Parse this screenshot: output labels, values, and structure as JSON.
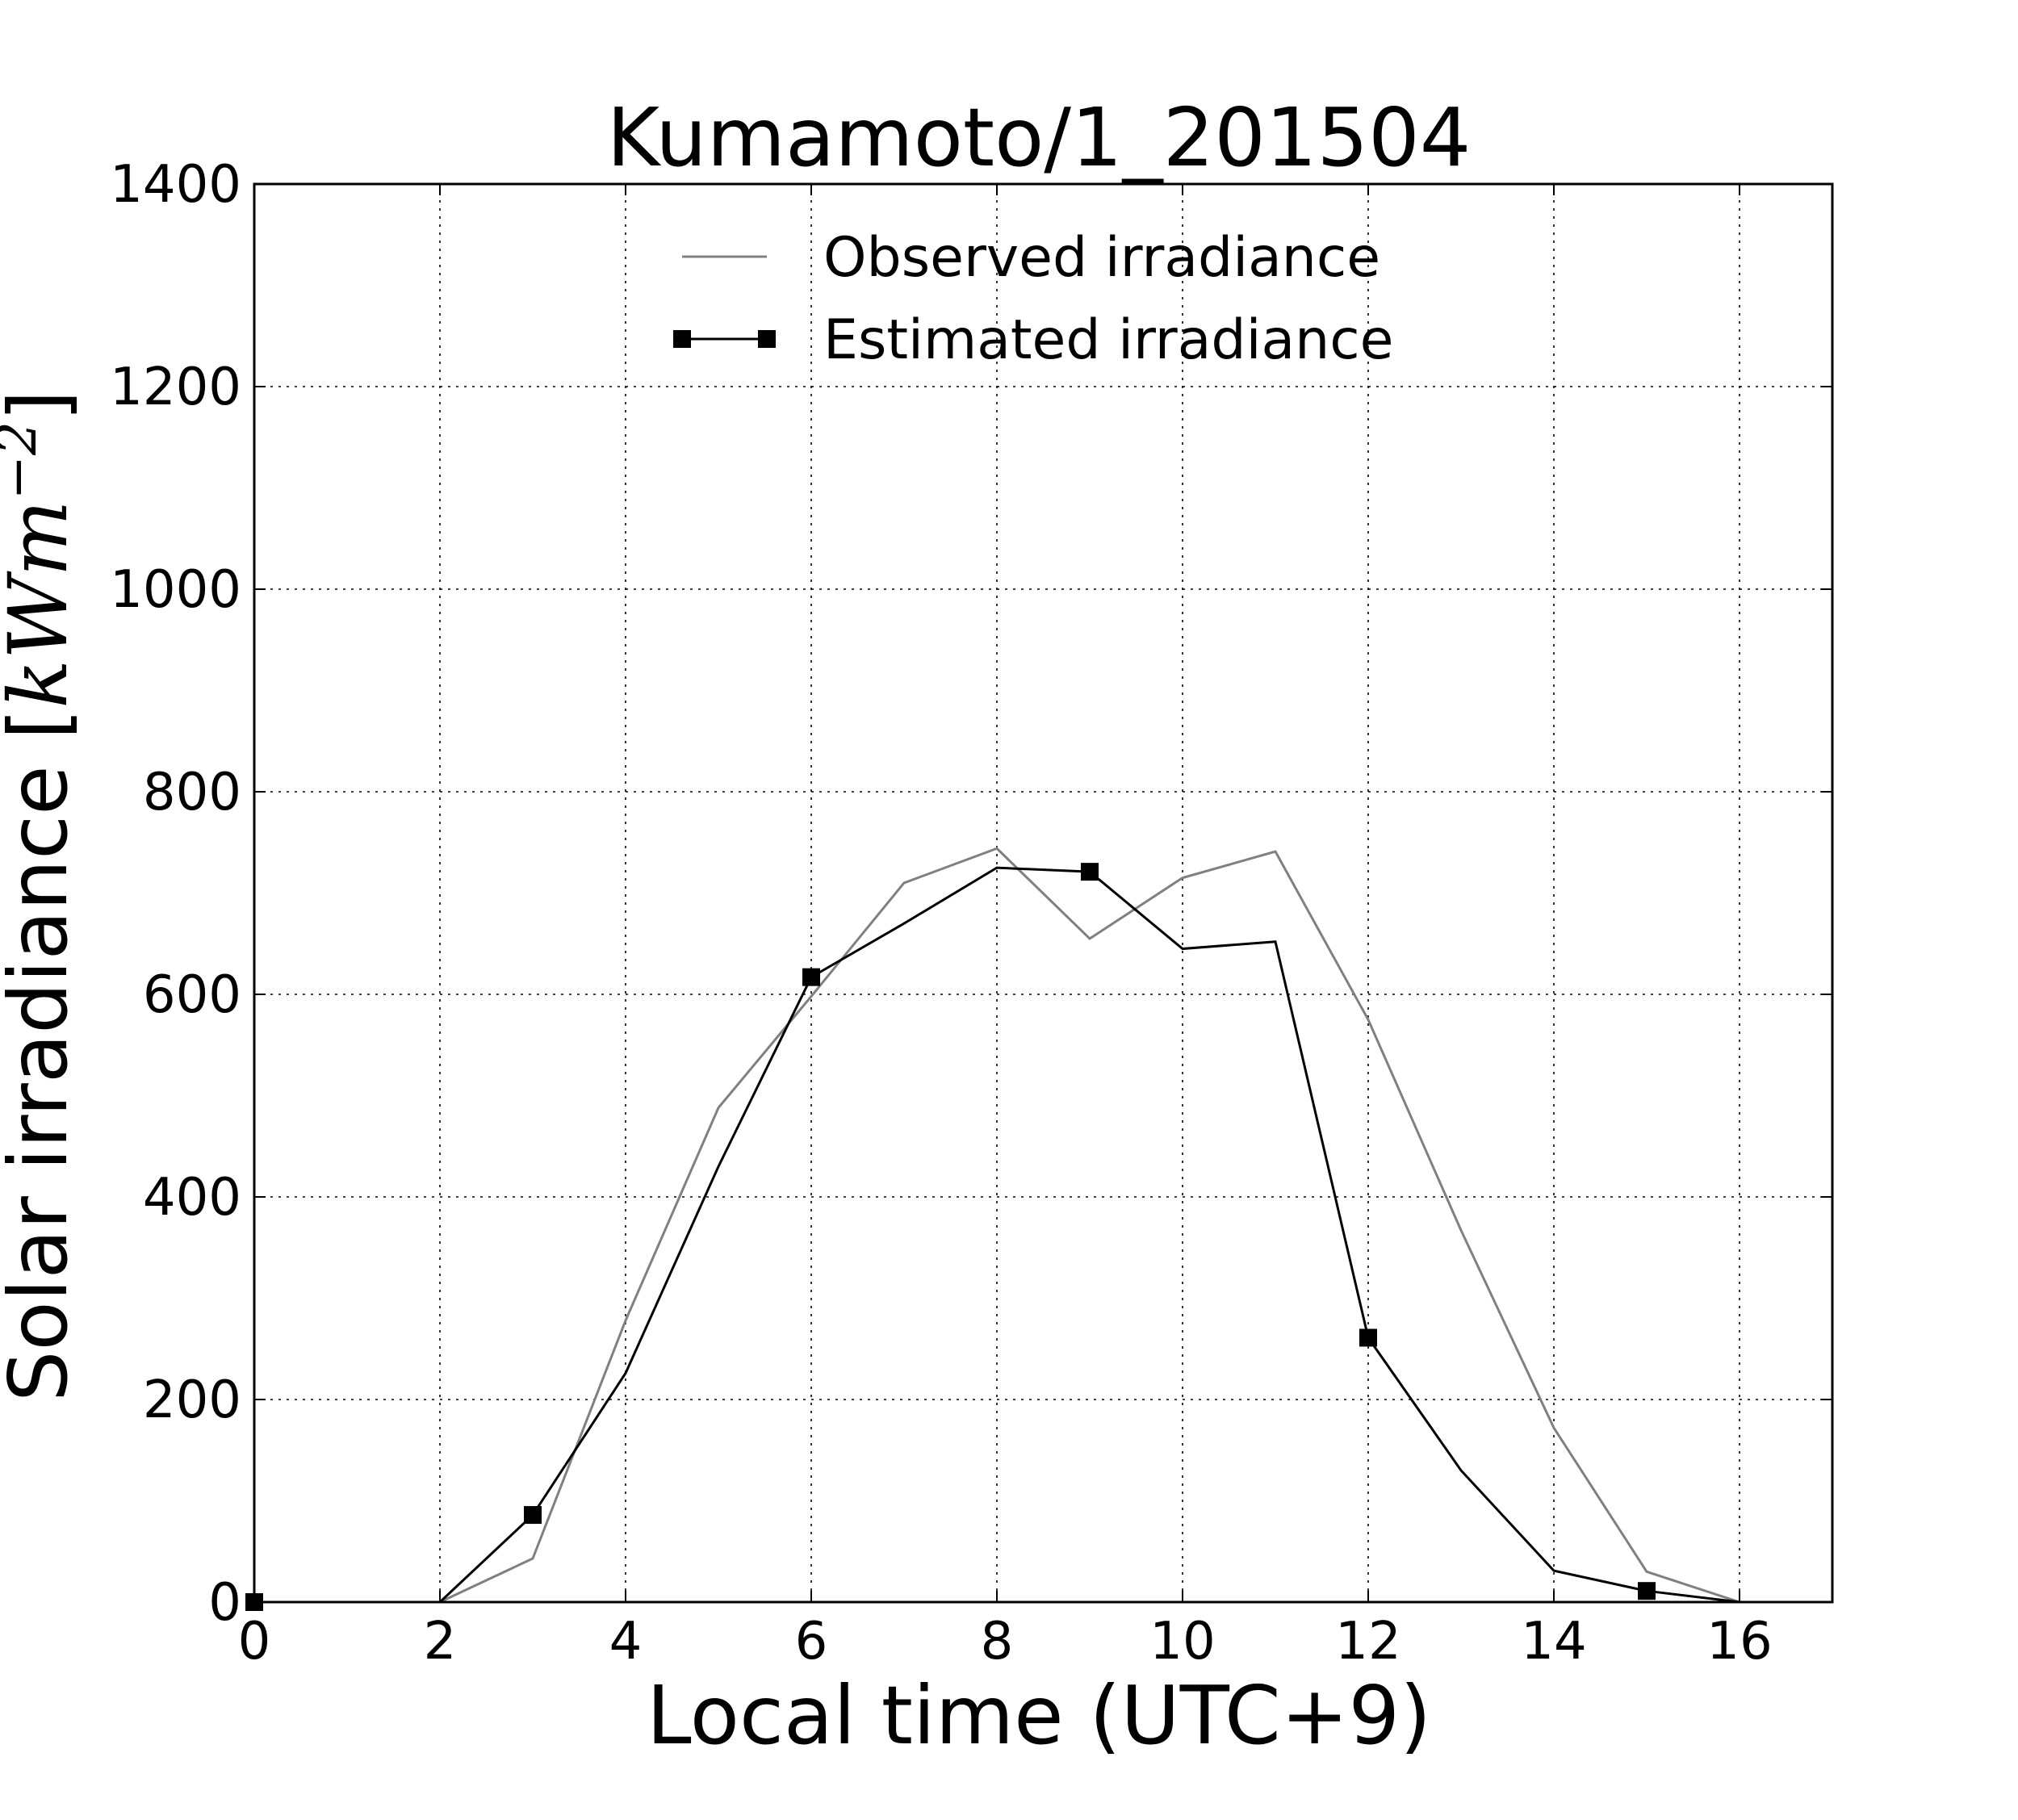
{
  "chart_data": {
    "type": "line",
    "title": "Kumamoto/1_201504",
    "xlabel": "Local time (UTC+9)",
    "ylabel": {
      "text": "Solar irradiance ",
      "unit_open": "[",
      "unit_kW": "kW",
      "unit_m": "m",
      "unit_exp": "−2",
      "unit_close": "]"
    },
    "xlim": [
      0,
      17
    ],
    "ylim": [
      0,
      1400
    ],
    "x_ticks": [
      0,
      2,
      4,
      6,
      8,
      10,
      12,
      14,
      16
    ],
    "y_ticks": [
      0,
      200,
      400,
      600,
      800,
      1000,
      1200,
      1400
    ],
    "grid": true,
    "legend_position": "upper center",
    "series": [
      {
        "name": "Observed irradiance",
        "color": "#808080",
        "marker": "none",
        "x": [
          0,
          1,
          2,
          3,
          4,
          5,
          6,
          7,
          8,
          9,
          10,
          11,
          12,
          13,
          14,
          15,
          16,
          17
        ],
        "y": [
          0,
          0,
          0,
          43,
          278,
          488,
          598,
          710,
          744,
          655,
          715,
          741,
          575,
          367,
          172,
          30,
          0,
          0
        ]
      },
      {
        "name": "Estimated irradiance",
        "color": "#000000",
        "marker": "square",
        "x": [
          0,
          1,
          2,
          3,
          4,
          5,
          6,
          7,
          8,
          9,
          10,
          11,
          12,
          13,
          14,
          15,
          16,
          17
        ],
        "y": [
          0,
          0,
          0,
          86,
          226,
          430,
          617,
          670,
          725,
          721,
          645,
          652,
          261,
          130,
          31,
          11,
          0,
          0
        ],
        "marker_points": [
          0,
          3,
          6,
          9,
          12,
          15
        ]
      }
    ]
  }
}
